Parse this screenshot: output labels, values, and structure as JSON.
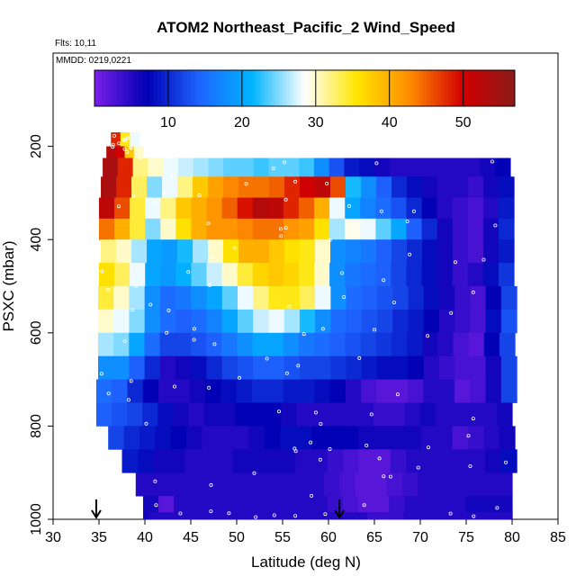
{
  "chart_data": {
    "type": "heatmap",
    "title": "ATOM2 Northeast_Pacific_2 Wind_Speed",
    "flights_label": "Flts: 10,11",
    "dates_label": "MMDD: 0219,0221",
    "xlabel": "Latitude (deg N)",
    "ylabel": "PSXC (mbar)",
    "xlim": [
      30,
      85
    ],
    "ylim": [
      1000,
      0
    ],
    "y_reversed": true,
    "x_ticks": [
      30,
      35,
      40,
      45,
      50,
      55,
      60,
      65,
      70,
      75,
      80,
      85
    ],
    "y_ticks": [
      200,
      400,
      600,
      800,
      1000
    ],
    "colorbar": {
      "range": [
        0,
        57
      ],
      "ticks": [
        10,
        20,
        30,
        40,
        50
      ],
      "palette": [
        "#7a1fe8",
        "#0000b4",
        "#1e64ff",
        "#00b4ff",
        "#ffffff",
        "#ffe600",
        "#ff8c00",
        "#d20000",
        "#8b1a1a"
      ]
    },
    "arrows_at_latitude": [
      34.7,
      61.2
    ],
    "layers": [
      {
        "p": [
          170,
          200
        ],
        "lat": [
          36.3,
          39.4
        ],
        "speeds": [
          48,
          35,
          28
        ]
      },
      {
        "p": [
          200,
          225
        ],
        "lat": [
          35.8,
          39.8
        ],
        "speeds": [
          53,
          50,
          38,
          30
        ]
      },
      {
        "p": [
          225,
          265
        ],
        "lat": [
          35.4,
          79.8
        ],
        "speeds": [
          54,
          48,
          32,
          30,
          28,
          27,
          26,
          25,
          24,
          24,
          23,
          24,
          24,
          23,
          18,
          13,
          9,
          8,
          6,
          5,
          5,
          5,
          5,
          5,
          5,
          6,
          7
        ]
      },
      {
        "p": [
          265,
          310
        ],
        "lat": [
          35.2,
          80.2
        ],
        "speeds": [
          54,
          48,
          33,
          25,
          28,
          32,
          38,
          41,
          43,
          44,
          44,
          45,
          48,
          50,
          52,
          46,
          22,
          18,
          14,
          10,
          8,
          6,
          5,
          5,
          4,
          6,
          8
        ]
      },
      {
        "p": [
          310,
          355
        ],
        "lat": [
          35.0,
          80.2
        ],
        "speeds": [
          52,
          46,
          34,
          28,
          32,
          38,
          40,
          42,
          45,
          49,
          53,
          52,
          48,
          45,
          40,
          28,
          20,
          17,
          15,
          13,
          10,
          7,
          5,
          4,
          3,
          5,
          9
        ]
      },
      {
        "p": [
          355,
          400
        ],
        "lat": [
          35.0,
          80.2
        ],
        "speeds": [
          44,
          40,
          34,
          25,
          30,
          36,
          40,
          42,
          42,
          43,
          44,
          44,
          42,
          41,
          36,
          26,
          29,
          28,
          24,
          20,
          14,
          10,
          6,
          4,
          3,
          6,
          10
        ]
      },
      {
        "p": [
          400,
          450
        ],
        "lat": [
          35.2,
          80.2
        ],
        "speeds": [
          32,
          30,
          26,
          20,
          19,
          22,
          26,
          30,
          36,
          40,
          40,
          38,
          36,
          35,
          30,
          18,
          17,
          16,
          14,
          12,
          10,
          8,
          6,
          4,
          3,
          6,
          9
        ]
      },
      {
        "p": [
          450,
          500
        ],
        "lat": [
          35.0,
          80.2
        ],
        "speeds": [
          36,
          33,
          28,
          20,
          19,
          21,
          24,
          27,
          30,
          34,
          37,
          38,
          37,
          35,
          30,
          18,
          16,
          15,
          14,
          12,
          10,
          8,
          6,
          4,
          5,
          8,
          11
        ]
      },
      {
        "p": [
          500,
          550
        ],
        "lat": [
          34.9,
          80.5
        ],
        "speeds": [
          34,
          30,
          26,
          18,
          15,
          16,
          18,
          20,
          24,
          28,
          32,
          35,
          35,
          33,
          28,
          18,
          15,
          14,
          13,
          12,
          10,
          8,
          6,
          4,
          3,
          7,
          12
        ]
      },
      {
        "p": [
          550,
          600
        ],
        "lat": [
          34.9,
          80.5
        ],
        "speeds": [
          30,
          28,
          25,
          18,
          15,
          14,
          15,
          17,
          20,
          24,
          27,
          28,
          26,
          22,
          18,
          15,
          14,
          13,
          12,
          10,
          9,
          7,
          5,
          4,
          3,
          8,
          13
        ]
      },
      {
        "p": [
          600,
          650
        ],
        "lat": [
          34.9,
          80.3
        ],
        "speeds": [
          26,
          25,
          20,
          15,
          12,
          12,
          13,
          14,
          16,
          18,
          20,
          20,
          18,
          16,
          15,
          14,
          13,
          12,
          11,
          10,
          9,
          6,
          5,
          3,
          2,
          7,
          12
        ]
      },
      {
        "p": [
          650,
          700
        ],
        "lat": [
          34.9,
          80.5
        ],
        "speeds": [
          18,
          18,
          14,
          10,
          5,
          6,
          8,
          10,
          12,
          13,
          14,
          14,
          13,
          12,
          12,
          11,
          10,
          9,
          8,
          8,
          7,
          5,
          4,
          3,
          3,
          6,
          12
        ]
      },
      {
        "p": [
          700,
          750
        ],
        "lat": [
          34.7,
          80.5
        ],
        "speeds": [
          15,
          14,
          10,
          7,
          5,
          5,
          6,
          7,
          8,
          9,
          10,
          10,
          9,
          9,
          8,
          7,
          5,
          3,
          2,
          2,
          3,
          5,
          5,
          2,
          3,
          6,
          12
        ]
      },
      {
        "p": [
          750,
          800
        ],
        "lat": [
          34.7,
          80.0
        ],
        "speeds": [
          14,
          13,
          12,
          10,
          8,
          6,
          5,
          6,
          6,
          7,
          7,
          7,
          6,
          5,
          5,
          5,
          5,
          5,
          4,
          4,
          5,
          6,
          5,
          5,
          5,
          5,
          6
        ]
      },
      {
        "p": [
          800,
          850
        ],
        "lat": [
          36.0,
          80.3
        ],
        "speeds": [
          12,
          10,
          9,
          8,
          7,
          6,
          5,
          5,
          5,
          6,
          7,
          8,
          8,
          7,
          7,
          7,
          6,
          6,
          6,
          6,
          5,
          5,
          3,
          4,
          5,
          6
        ]
      },
      {
        "p": [
          850,
          900
        ],
        "lat": [
          37.5,
          80.5
        ],
        "speeds": [
          9,
          8,
          6,
          6,
          5,
          5,
          5,
          6,
          6,
          6,
          6,
          5,
          5,
          4,
          3,
          2,
          2,
          4,
          5,
          5,
          5,
          5,
          5,
          6,
          8
        ]
      },
      {
        "p": [
          900,
          950
        ],
        "lat": [
          39.0,
          80.0
        ],
        "speeds": [
          5,
          5,
          5,
          5,
          5,
          5,
          5,
          5,
          5,
          5,
          5,
          5,
          4,
          3,
          2,
          2,
          3,
          4,
          5,
          5,
          5,
          5,
          5,
          5
        ]
      },
      {
        "p": [
          950,
          1000
        ],
        "lat": [
          39.8,
          80.0
        ],
        "speeds": [
          6,
          2,
          5,
          5,
          5,
          5,
          5,
          5,
          5,
          5,
          5,
          5,
          4,
          3,
          2,
          2,
          4,
          5,
          5,
          5,
          5,
          6,
          6,
          6
        ]
      },
      {
        "p": [
          985,
          1000
        ],
        "lat": [
          40.5,
          80.0
        ],
        "speeds": [
          5,
          5,
          5,
          5,
          5,
          5,
          5,
          5,
          5,
          5,
          5,
          5,
          4,
          4,
          5,
          5,
          5,
          5,
          5,
          5
        ]
      }
    ]
  }
}
